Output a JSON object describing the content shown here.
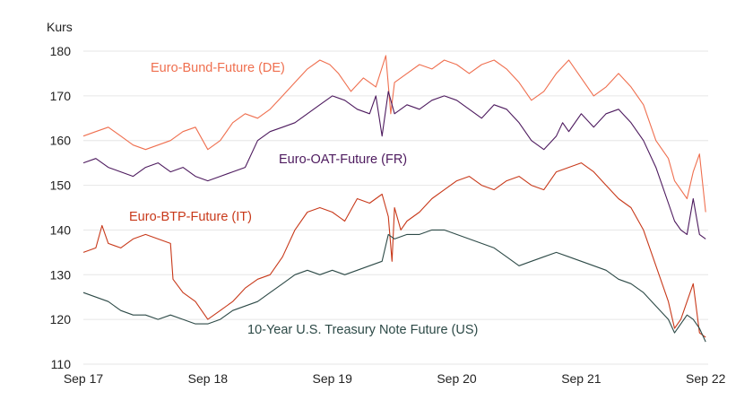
{
  "chart_data": {
    "type": "line",
    "ylabel": "Kurs",
    "ylim": [
      110,
      180
    ],
    "yticks": [
      180,
      170,
      160,
      150,
      140,
      130,
      120,
      110
    ],
    "xlim": [
      2017.7,
      2022.72
    ],
    "xticks": [
      {
        "value": 2017.7,
        "label": "Sep 17"
      },
      {
        "value": 2018.7,
        "label": "Sep 18"
      },
      {
        "value": 2019.7,
        "label": "Sep 19"
      },
      {
        "value": 2020.7,
        "label": "Sep 20"
      },
      {
        "value": 2021.7,
        "label": "Sep 21"
      },
      {
        "value": 2022.7,
        "label": "Sep 22"
      }
    ],
    "grid": "horizontal",
    "series": [
      {
        "name": "Euro-Bund-Future (DE)",
        "color": "#ef6f4f",
        "x": [
          2017.7,
          2017.8,
          2017.9,
          2018.0,
          2018.1,
          2018.2,
          2018.3,
          2018.4,
          2018.5,
          2018.6,
          2018.7,
          2018.8,
          2018.9,
          2019.0,
          2019.1,
          2019.2,
          2019.3,
          2019.4,
          2019.5,
          2019.6,
          2019.68,
          2019.75,
          2019.85,
          2019.95,
          2020.05,
          2020.13,
          2020.17,
          2020.2,
          2020.3,
          2020.4,
          2020.5,
          2020.6,
          2020.7,
          2020.8,
          2020.9,
          2021.0,
          2021.1,
          2021.2,
          2021.3,
          2021.4,
          2021.5,
          2021.6,
          2021.7,
          2021.8,
          2021.9,
          2022.0,
          2022.1,
          2022.2,
          2022.3,
          2022.4,
          2022.45,
          2022.5,
          2022.55,
          2022.6,
          2022.65,
          2022.7
        ],
        "values": [
          161,
          162,
          163,
          161,
          159,
          158,
          159,
          160,
          162,
          163,
          158,
          160,
          164,
          166,
          165,
          167,
          170,
          173,
          176,
          178,
          177,
          175,
          171,
          174,
          172,
          179,
          166,
          173,
          175,
          177,
          176,
          178,
          177,
          175,
          177,
          178,
          176,
          173,
          169,
          171,
          175,
          178,
          174,
          170,
          172,
          175,
          172,
          168,
          160,
          156,
          151,
          149,
          147,
          153,
          157,
          144
        ]
      },
      {
        "name": "Euro-OAT-Future (FR)",
        "color": "#4d1a5e",
        "x": [
          2017.7,
          2017.8,
          2017.9,
          2018.0,
          2018.1,
          2018.2,
          2018.3,
          2018.4,
          2018.5,
          2018.6,
          2018.7,
          2018.8,
          2018.9,
          2019.0,
          2019.1,
          2019.2,
          2019.3,
          2019.4,
          2019.5,
          2019.6,
          2019.7,
          2019.8,
          2019.9,
          2020.0,
          2020.05,
          2020.1,
          2020.15,
          2020.2,
          2020.3,
          2020.4,
          2020.5,
          2020.6,
          2020.7,
          2020.8,
          2020.9,
          2021.0,
          2021.1,
          2021.2,
          2021.3,
          2021.4,
          2021.5,
          2021.55,
          2021.6,
          2021.7,
          2021.8,
          2021.9,
          2022.0,
          2022.1,
          2022.2,
          2022.3,
          2022.4,
          2022.45,
          2022.5,
          2022.55,
          2022.6,
          2022.65,
          2022.7
        ],
        "values": [
          155,
          156,
          154,
          153,
          152,
          154,
          155,
          153,
          154,
          152,
          151,
          152,
          153,
          154,
          160,
          162,
          163,
          164,
          166,
          168,
          170,
          169,
          167,
          166,
          170,
          161,
          171,
          166,
          168,
          167,
          169,
          170,
          169,
          167,
          165,
          168,
          167,
          164,
          160,
          158,
          161,
          164,
          162,
          166,
          163,
          166,
          167,
          164,
          160,
          154,
          146,
          142,
          140,
          139,
          147,
          139,
          138
        ]
      },
      {
        "name": "Euro-BTP-Future (IT)",
        "color": "#c8391a",
        "x": [
          2017.7,
          2017.8,
          2017.85,
          2017.9,
          2018.0,
          2018.1,
          2018.2,
          2018.3,
          2018.4,
          2018.42,
          2018.5,
          2018.6,
          2018.7,
          2018.8,
          2018.9,
          2019.0,
          2019.1,
          2019.2,
          2019.3,
          2019.4,
          2019.5,
          2019.6,
          2019.7,
          2019.8,
          2019.9,
          2020.0,
          2020.1,
          2020.15,
          2020.18,
          2020.2,
          2020.25,
          2020.3,
          2020.4,
          2020.5,
          2020.6,
          2020.7,
          2020.8,
          2020.9,
          2021.0,
          2021.1,
          2021.2,
          2021.3,
          2021.4,
          2021.5,
          2021.6,
          2021.7,
          2021.8,
          2021.9,
          2022.0,
          2022.1,
          2022.2,
          2022.3,
          2022.4,
          2022.45,
          2022.5,
          2022.55,
          2022.6,
          2022.65,
          2022.7
        ],
        "values": [
          135,
          136,
          141,
          137,
          136,
          138,
          139,
          138,
          137,
          129,
          126,
          124,
          120,
          122,
          124,
          127,
          129,
          130,
          134,
          140,
          144,
          145,
          144,
          142,
          147,
          146,
          148,
          143,
          133,
          145,
          140,
          142,
          144,
          147,
          149,
          151,
          152,
          150,
          149,
          151,
          152,
          150,
          149,
          153,
          154,
          155,
          153,
          150,
          147,
          145,
          140,
          132,
          124,
          118,
          120,
          124,
          128,
          117,
          116
        ]
      },
      {
        "name": "10-Year U.S. Treasury Note Future (US)",
        "color": "#2d4a47",
        "x": [
          2017.7,
          2017.8,
          2017.9,
          2018.0,
          2018.1,
          2018.2,
          2018.3,
          2018.4,
          2018.5,
          2018.6,
          2018.7,
          2018.8,
          2018.9,
          2019.0,
          2019.1,
          2019.2,
          2019.3,
          2019.4,
          2019.5,
          2019.6,
          2019.7,
          2019.8,
          2019.9,
          2020.0,
          2020.1,
          2020.15,
          2020.2,
          2020.3,
          2020.4,
          2020.5,
          2020.6,
          2020.7,
          2020.8,
          2020.9,
          2021.0,
          2021.1,
          2021.2,
          2021.3,
          2021.4,
          2021.5,
          2021.6,
          2021.7,
          2021.8,
          2021.9,
          2022.0,
          2022.1,
          2022.2,
          2022.3,
          2022.4,
          2022.45,
          2022.5,
          2022.55,
          2022.6,
          2022.65,
          2022.7
        ],
        "values": [
          126,
          125,
          124,
          122,
          121,
          121,
          120,
          121,
          120,
          119,
          119,
          120,
          122,
          123,
          124,
          126,
          128,
          130,
          131,
          130,
          131,
          130,
          131,
          132,
          133,
          139,
          138,
          139,
          139,
          140,
          140,
          139,
          138,
          137,
          136,
          134,
          132,
          133,
          134,
          135,
          134,
          133,
          132,
          131,
          129,
          128,
          126,
          123,
          120,
          117,
          119,
          121,
          120,
          118,
          115
        ]
      }
    ]
  }
}
